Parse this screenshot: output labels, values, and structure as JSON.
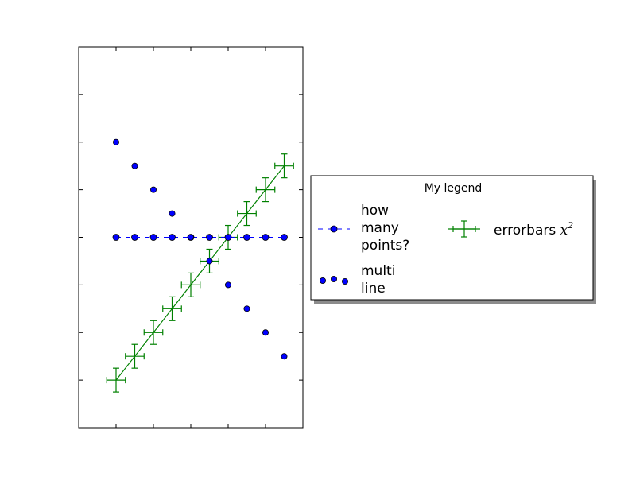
{
  "chart_data": {
    "type": "line",
    "title": "",
    "xlabel": "",
    "ylabel": "",
    "xlim": [
      -1,
      5
    ],
    "ylim": [
      -1,
      7
    ],
    "grid": false,
    "tick_labels_visible": false,
    "series": [
      {
        "name": "how many points?",
        "style": "dashed line with circle markers",
        "color": "#0000ff",
        "x": [
          0,
          0.5,
          1,
          1.5,
          2,
          2.5,
          3,
          3.5,
          4,
          4.5
        ],
        "y": [
          3,
          3,
          3,
          3,
          3,
          3,
          3,
          3,
          3,
          3
        ]
      },
      {
        "name": "multi\nline",
        "style": "markers only",
        "color": "#0000ff",
        "x": [
          0,
          0.5,
          1,
          1.5,
          2,
          2.5,
          3,
          3.5,
          4,
          4.5
        ],
        "y": [
          5,
          4.5,
          4,
          3.5,
          3,
          2.5,
          2,
          1.5,
          1,
          0.5
        ]
      },
      {
        "name": "errorbars $x^2$",
        "style": "solid line with error bars",
        "color": "#008000",
        "x": [
          0,
          0.5,
          1,
          1.5,
          2,
          2.5,
          3,
          3.5,
          4,
          4.5
        ],
        "y": [
          0,
          0.5,
          1,
          1.5,
          2,
          2.5,
          3,
          3.5,
          4,
          4.5
        ],
        "xerr": 0.25,
        "yerr": 0.25
      }
    ],
    "legend": {
      "title": "My legend",
      "placement": "outside right",
      "columns": 2,
      "entries": [
        {
          "label": "how\nmany\npoints?"
        },
        {
          "label": "multi\nline"
        },
        {
          "label_prefix": "errorbars ",
          "label_math": "x",
          "label_sup": "2"
        }
      ]
    },
    "colors": {
      "blue": "#0000ff",
      "green": "#008000",
      "axes": "#000000"
    }
  }
}
